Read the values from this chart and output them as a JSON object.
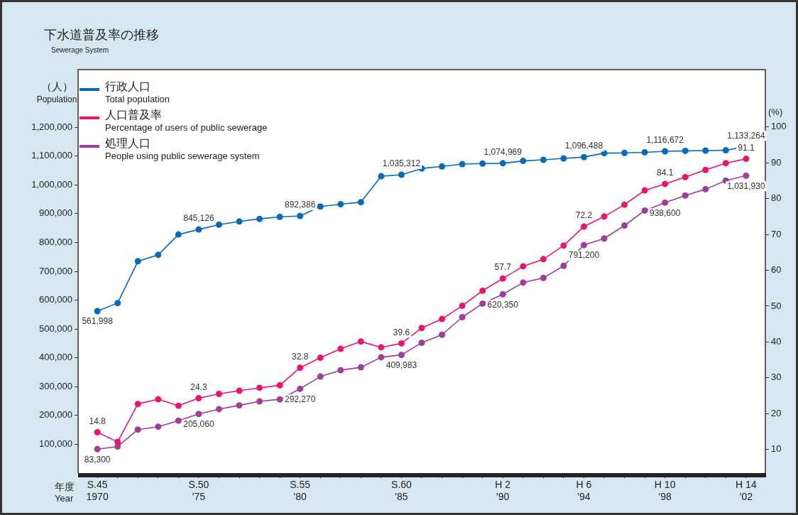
{
  "chart_data": {
    "type": "line",
    "title": "下水道普及率の推移",
    "subtitle": "Sewerage System",
    "xlabel": "年度\nYear",
    "ylabel": "（人）\nPopulation",
    "y2label": "(%)",
    "categories": [
      "S.45\n1970",
      null,
      null,
      null,
      null,
      "S.50\n'75",
      null,
      null,
      null,
      null,
      "S.55\n'80",
      null,
      null,
      null,
      null,
      "S.60\n'85",
      null,
      null,
      null,
      null,
      "H 2\n'90",
      null,
      null,
      null,
      "H 6\n'94",
      null,
      null,
      null,
      "H 10\n'98",
      null,
      null,
      null,
      "H 14\n'02"
    ],
    "series": [
      {
        "name": "行政人口\nTotal population",
        "color": "#0a6ab8",
        "values": [
          561998,
          590000,
          735000,
          757000,
          828000,
          845126,
          862000,
          873000,
          882000,
          889000,
          892386,
          925000,
          933000,
          940000,
          1030000,
          1035312,
          1057000,
          1064000,
          1072000,
          1074000,
          1074969,
          1083000,
          1087000,
          1092000,
          1096488,
          1110000,
          1111000,
          1113000,
          1116672,
          1118000,
          1119000,
          1120000,
          1133264
        ],
        "value_labels": [
          "561,998",
          null,
          null,
          null,
          null,
          "845,126",
          null,
          null,
          null,
          null,
          "892,386",
          null,
          null,
          null,
          null,
          "1,035,312",
          null,
          null,
          null,
          null,
          "1,074,969",
          null,
          null,
          null,
          "1,096,488",
          null,
          null,
          null,
          "1,116,672",
          null,
          null,
          null,
          "1,133,264"
        ]
      },
      {
        "name": "人口普及率\nPercentage of users of public sewerage",
        "color": "#e6176f",
        "axis": "y2",
        "values": [
          14.8,
          12.1,
          22.7,
          24.0,
          22.2,
          24.3,
          25.5,
          26.4,
          27.2,
          27.9,
          32.8,
          35.6,
          38.1,
          40.1,
          38.5,
          39.6,
          43.9,
          46.4,
          50.1,
          54.3,
          57.7,
          61.1,
          63.1,
          66.9,
          72.2,
          75.0,
          78.3,
          82.3,
          84.1,
          86.0,
          88.0,
          89.9,
          91.1
        ],
        "value_labels": [
          "14.8",
          null,
          null,
          null,
          null,
          "24.3",
          null,
          null,
          null,
          null,
          "32.8",
          null,
          null,
          null,
          null,
          "39.6",
          null,
          null,
          null,
          null,
          "57.7",
          null,
          null,
          null,
          "72.2",
          null,
          null,
          null,
          "84.1",
          null,
          null,
          null,
          "91.1"
        ]
      },
      {
        "name": "処理人口\nPeople using public sewerage system",
        "color": "#9b3f98",
        "values": [
          83300,
          92000,
          151000,
          161000,
          182000,
          205060,
          222000,
          235000,
          249000,
          256000,
          292270,
          335000,
          357000,
          367000,
          402000,
          409983,
          452000,
          480000,
          541000,
          588000,
          620350,
          661000,
          677000,
          719000,
          791200,
          814000,
          859000,
          911000,
          938600,
          963000,
          985000,
          1015000,
          1031930
        ],
        "value_labels": [
          "83,300",
          null,
          null,
          null,
          null,
          "205,060",
          null,
          null,
          null,
          null,
          "292,270",
          null,
          null,
          null,
          null,
          "409,983",
          null,
          null,
          null,
          null,
          "620,350",
          null,
          null,
          null,
          "791,200",
          null,
          null,
          null,
          "938,600",
          null,
          null,
          null,
          "1,031,930"
        ]
      }
    ],
    "ylim": [
      0,
      1400000
    ],
    "yticks": [
      {
        "value": 100000,
        "label": "100,000"
      },
      {
        "value": 200000,
        "label": "200,000"
      },
      {
        "value": 300000,
        "label": "300,000"
      },
      {
        "value": 400000,
        "label": "400,000"
      },
      {
        "value": 500000,
        "label": "500,000"
      },
      {
        "value": 600000,
        "label": "600,000"
      },
      {
        "value": 700000,
        "label": "700,000"
      },
      {
        "value": 800000,
        "label": "800,000"
      },
      {
        "value": 900000,
        "label": "900,000"
      },
      {
        "value": 1000000,
        "label": "1,000,000"
      },
      {
        "value": 1100000,
        "label": "1,100,000"
      },
      {
        "value": 1200000,
        "label": "1,200,000"
      }
    ],
    "y2lim": [
      3.4,
      116
    ],
    "y2ticks": [
      10,
      20,
      30,
      40,
      50,
      60,
      70,
      80,
      90,
      100
    ],
    "grid": false,
    "legend": "top left",
    "marker": "circle",
    "line_style": "solid"
  }
}
